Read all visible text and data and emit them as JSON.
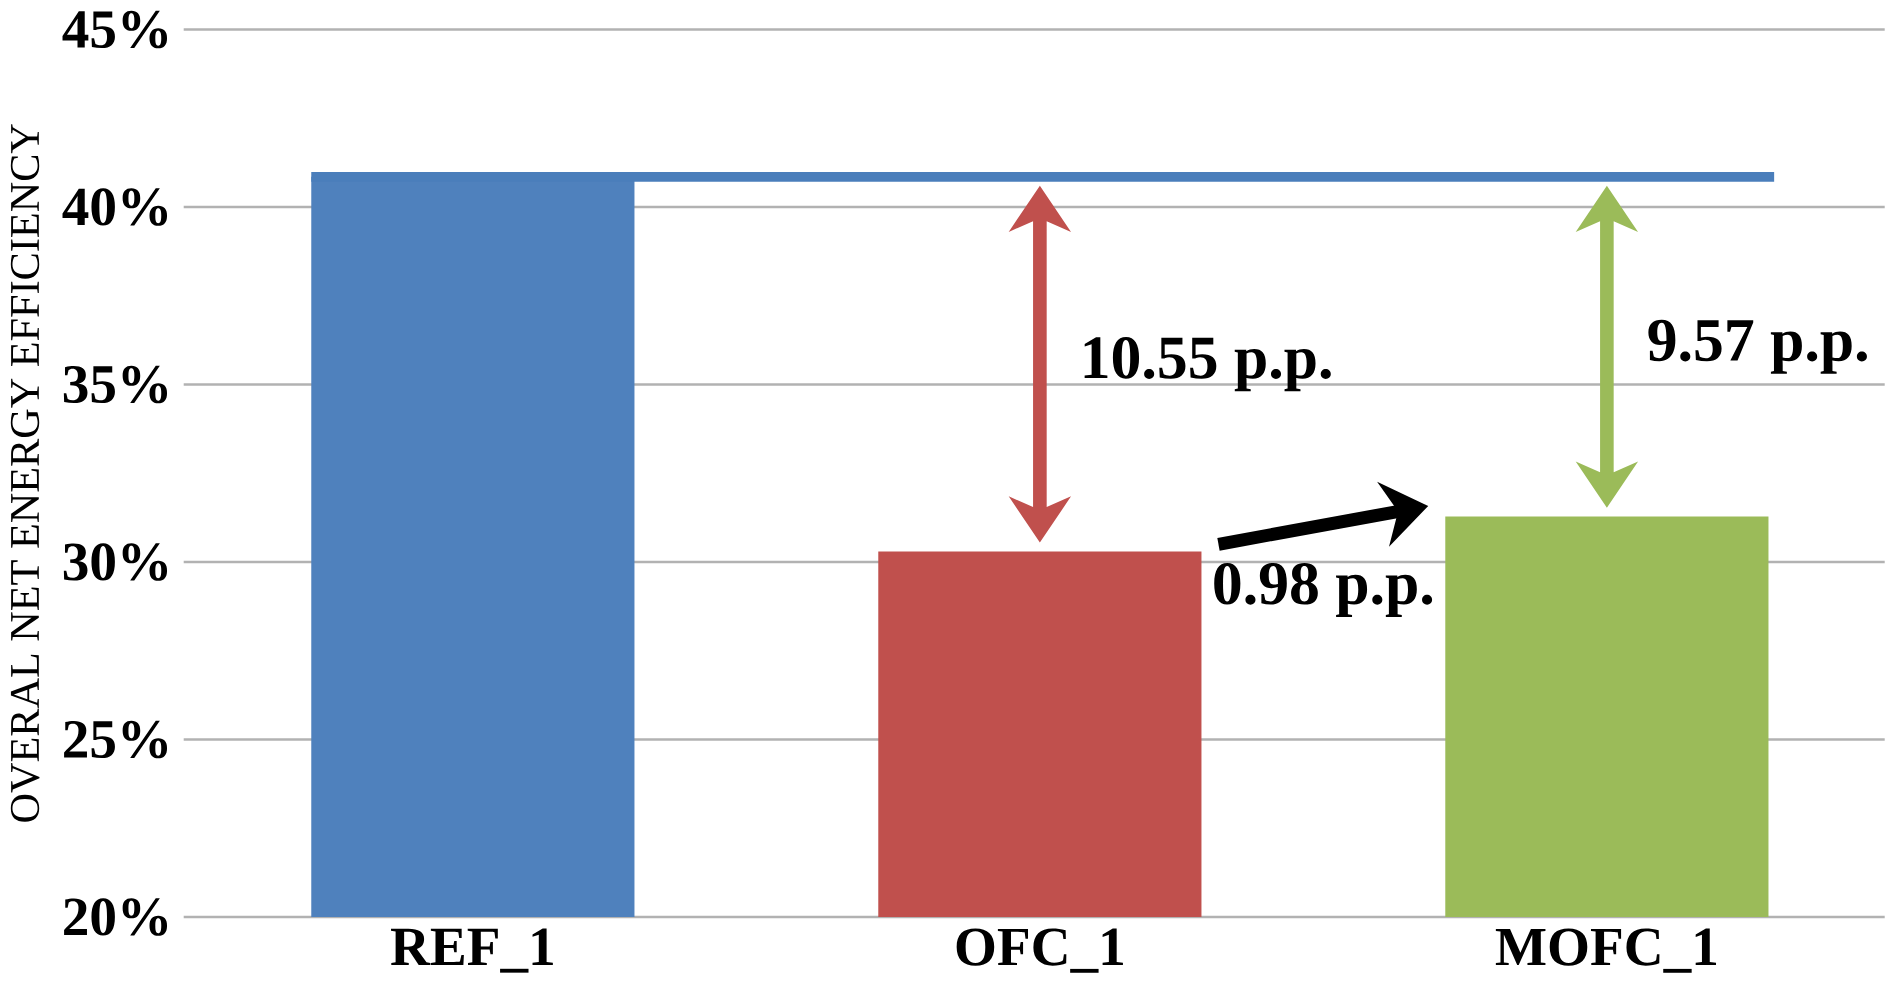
{
  "chart_data": {
    "type": "bar",
    "ylabel": "OVERAL NET ENERGY EFFICIENCY",
    "categories": [
      "REF_1",
      "OFC_1",
      "MOFC_1"
    ],
    "values": [
      40.85,
      30.3,
      31.28
    ],
    "colors": [
      "#4f81bd",
      "#c0504d",
      "#9bbb59"
    ],
    "ylim": [
      20,
      45
    ],
    "yticks": [
      {
        "value": 20,
        "label": "20%"
      },
      {
        "value": 25,
        "label": "25%"
      },
      {
        "value": 30,
        "label": "30%"
      },
      {
        "value": 35,
        "label": "35%"
      },
      {
        "value": 40,
        "label": "40%"
      },
      {
        "value": 45,
        "label": "45%"
      }
    ],
    "grid": "y",
    "ref_lines": [
      {
        "axis": "y",
        "value": 40.85,
        "color": "#4a7ebb"
      }
    ],
    "annotations": [
      "**10.55 p.p.**",
      "**9.57 p.p.**",
      "**0.98 p.p.**"
    ]
  }
}
